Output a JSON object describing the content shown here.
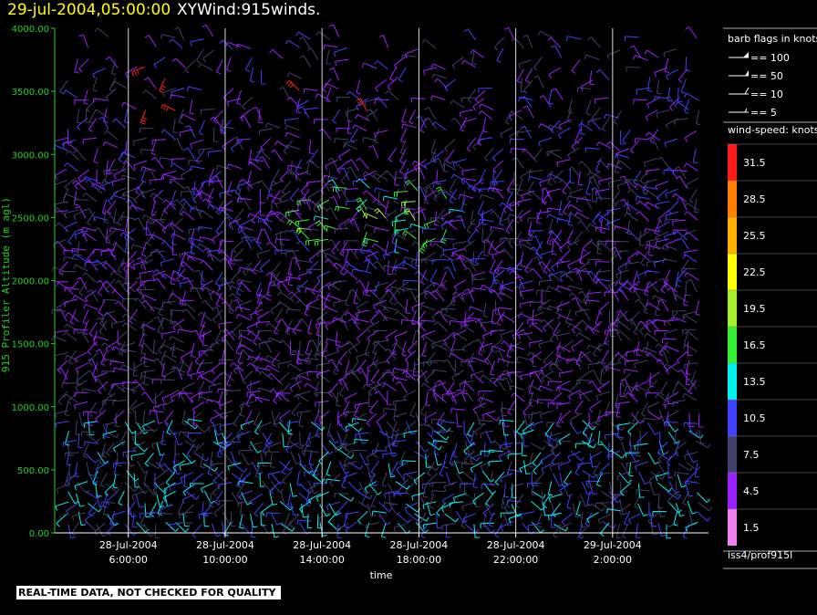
{
  "title": {
    "datetime": "29-jul-2004,05:00:00",
    "name": "XYWind:915winds."
  },
  "footer": {
    "note": "REAL-TIME DATA, NOT CHECKED FOR QUALITY"
  },
  "legend": {
    "barb_title": "barb flags in knots",
    "barbs": [
      {
        "label": "== 100"
      },
      {
        "label": "== 50"
      },
      {
        "label": "== 10"
      },
      {
        "label": "== 5"
      }
    ],
    "speed_title": "wind-speed: knots",
    "speed_scale": [
      {
        "label": "31.5",
        "color": "#ff1a1a"
      },
      {
        "label": "28.5",
        "color": "#ff8000"
      },
      {
        "label": "25.5",
        "color": "#ffb000"
      },
      {
        "label": "22.5",
        "color": "#ffff00"
      },
      {
        "label": "19.5",
        "color": "#a6f030"
      },
      {
        "label": "16.5",
        "color": "#33ee33"
      },
      {
        "label": "13.5",
        "color": "#00f0f0"
      },
      {
        "label": "10.5",
        "color": "#4040ff"
      },
      {
        "label": "7.5",
        "color": "#40406a"
      },
      {
        "label": "4.5",
        "color": "#9a20ff"
      },
      {
        "label": "1.5",
        "color": "#f080f0"
      }
    ],
    "source": "iss4/prof915l"
  },
  "chart_data": {
    "type": "scatter",
    "xlabel": "time",
    "ylabel": "915 Profiler Altitude (m agl)",
    "ylim": [
      0,
      4000
    ],
    "yticks": [
      "0.00",
      "500.00",
      "1000.00",
      "1500.00",
      "2000.00",
      "2500.00",
      "3000.00",
      "3500.00",
      "4000.00"
    ],
    "xticks": [
      {
        "date": "28-Jul-2004",
        "time": "6:00:00"
      },
      {
        "date": "28-Jul-2004",
        "time": "10:00:00"
      },
      {
        "date": "28-Jul-2004",
        "time": "14:00:00"
      },
      {
        "date": "28-Jul-2004",
        "time": "18:00:00"
      },
      {
        "date": "28-Jul-2004",
        "time": "22:00:00"
      },
      {
        "date": "29-Jul-2004",
        "time": "2:00:00"
      }
    ],
    "xlim_hours": [
      2.96,
      29.96
    ],
    "grid": "vertical lines at each time tick",
    "marks": "wind barbs colored by wind speed (knots), roughly every 15 minutes and 60 m altitude"
  }
}
